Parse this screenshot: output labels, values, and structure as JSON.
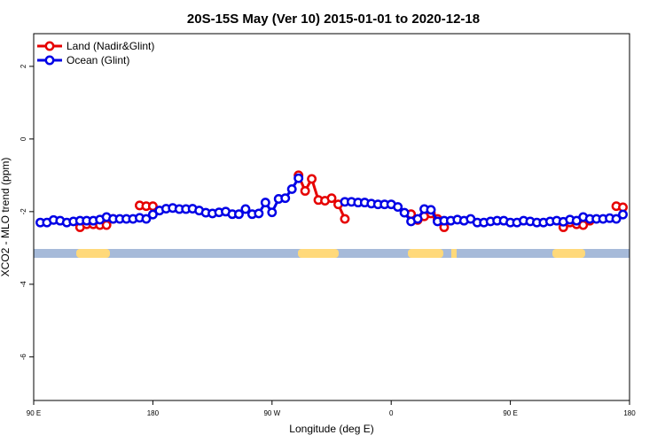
{
  "chart_data": {
    "type": "line",
    "title": "20S-15S May (Ver 10)   2015-01-01 to 2020-12-18",
    "x_label": "Longitude (deg E)",
    "y_label": "XCO2 - MLO trend (ppm)",
    "x": [
      95,
      100,
      105,
      110,
      115,
      120,
      125,
      130,
      135,
      140,
      145,
      150,
      155,
      160,
      165,
      170,
      175,
      180,
      185,
      190,
      195,
      200,
      205,
      210,
      215,
      220,
      225,
      230,
      235,
      240,
      245,
      250,
      255,
      260,
      265,
      270,
      275,
      280,
      285,
      290,
      295,
      300,
      305,
      310,
      315,
      320,
      325,
      330,
      335,
      340,
      345,
      350,
      355,
      360,
      365,
      370,
      375,
      380,
      385,
      390,
      395,
      400,
      405,
      410,
      415,
      420,
      425,
      430,
      435,
      440,
      445,
      450,
      455,
      460,
      465,
      470,
      475,
      480,
      485,
      490,
      495,
      500,
      505,
      510,
      515,
      520,
      525,
      530,
      535
    ],
    "series": [
      {
        "name": "Land (Nadir&Glint)",
        "color": "#e60000",
        "values": [
          null,
          null,
          null,
          null,
          null,
          null,
          -2.43,
          -2.35,
          -2.35,
          -2.37,
          -2.37,
          -2.2,
          null,
          null,
          null,
          -1.83,
          -1.85,
          -1.85,
          null,
          null,
          null,
          null,
          null,
          null,
          null,
          null,
          null,
          null,
          null,
          null,
          null,
          null,
          null,
          null,
          null,
          null,
          null,
          null,
          null,
          -1.0,
          -1.43,
          -1.1,
          -1.68,
          -1.7,
          -1.63,
          -1.8,
          -2.2,
          null,
          null,
          null,
          null,
          null,
          null,
          null,
          null,
          null,
          -2.07,
          -2.23,
          -2.13,
          -2.05,
          -2.2,
          -2.43,
          null,
          null,
          null,
          null,
          null,
          null,
          null,
          null,
          null,
          null,
          null,
          null,
          null,
          null,
          null,
          null,
          null,
          -2.43,
          -2.3,
          -2.35,
          -2.37,
          -2.25,
          null,
          null,
          null,
          -1.85,
          -1.88
        ]
      },
      {
        "name": "Ocean (Glint)",
        "color": "#0000e6",
        "values": [
          -2.3,
          -2.3,
          -2.23,
          -2.25,
          -2.3,
          -2.27,
          -2.25,
          -2.25,
          -2.25,
          -2.22,
          -2.15,
          -2.2,
          -2.2,
          -2.2,
          -2.2,
          -2.17,
          -2.2,
          -2.08,
          -1.97,
          -1.92,
          -1.9,
          -1.93,
          -1.93,
          -1.92,
          -1.97,
          -2.03,
          -2.05,
          -2.02,
          -2.0,
          -2.07,
          -2.07,
          -1.93,
          -2.07,
          -2.05,
          -1.75,
          -2.02,
          -1.65,
          -1.63,
          -1.38,
          -1.08,
          null,
          null,
          null,
          null,
          null,
          null,
          -1.73,
          -1.73,
          -1.75,
          -1.75,
          -1.78,
          -1.8,
          -1.8,
          -1.8,
          -1.87,
          -2.03,
          -2.27,
          -2.2,
          -1.93,
          -1.95,
          -2.27,
          -2.25,
          -2.25,
          -2.22,
          -2.25,
          -2.2,
          -2.3,
          -2.3,
          -2.27,
          -2.25,
          -2.25,
          -2.3,
          -2.3,
          -2.25,
          -2.27,
          -2.3,
          -2.3,
          -2.27,
          -2.25,
          -2.28,
          -2.22,
          -2.25,
          -2.15,
          -2.2,
          -2.2,
          -2.2,
          -2.18,
          -2.2,
          -2.08
        ]
      }
    ],
    "xlim": [
      90,
      540
    ],
    "xticks": [
      {
        "value": 90,
        "label": "90 E"
      },
      {
        "value": 180,
        "label": "180"
      },
      {
        "value": 270,
        "label": "90 W"
      },
      {
        "value": 360,
        "label": "0"
      },
      {
        "value": 450,
        "label": "90 E"
      },
      {
        "value": 540,
        "label": "180"
      }
    ],
    "ylim": [
      -7.2,
      2.9
    ],
    "yticks": [
      2,
      0,
      -2,
      -4,
      -6
    ],
    "legend": "top-left",
    "grid": false
  }
}
